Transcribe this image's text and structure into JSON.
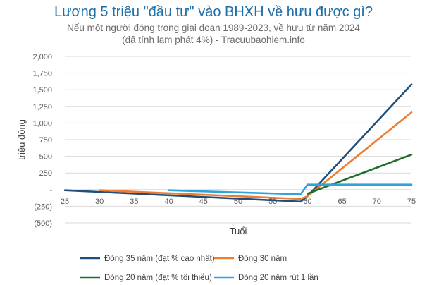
{
  "chart_data": {
    "type": "line",
    "title": "Lương 5 triệu \"đầu tư\" vào BHXH về hưu được gì?",
    "subtitle_lines": [
      "Nếu một người đóng trong giai đoạn 1989-2023, về hưu từ năm 2024",
      "(đã tính lạm phát 4%) - Tracuubaohiem.info"
    ],
    "xlabel": "Tuổi",
    "ylabel": "triệu đồng",
    "xlim": [
      25,
      75
    ],
    "ylim": [
      -500,
      2000
    ],
    "x_ticks": [
      25,
      30,
      35,
      40,
      45,
      50,
      55,
      60,
      65,
      70,
      75
    ],
    "y_ticks": [
      {
        "value": 2000,
        "label": "2,000"
      },
      {
        "value": 1750,
        "label": "1,750"
      },
      {
        "value": 1500,
        "label": "1,500"
      },
      {
        "value": 1250,
        "label": "1,250"
      },
      {
        "value": 1000,
        "label": "1,000"
      },
      {
        "value": 750,
        "label": "750"
      },
      {
        "value": 500,
        "label": "500"
      },
      {
        "value": 250,
        "label": "250"
      },
      {
        "value": 0,
        "label": "-"
      },
      {
        "value": -250,
        "label": "(250)"
      },
      {
        "value": -500,
        "label": "(500)"
      }
    ],
    "grid": true,
    "legend_position": "bottom",
    "series": [
      {
        "name": "Đóng 35 năm (đạt % cao nhất)",
        "color": "#1e4e79",
        "points": [
          [
            25,
            -10
          ],
          [
            59,
            -180
          ],
          [
            60,
            -100
          ],
          [
            75,
            1580
          ]
        ]
      },
      {
        "name": "Đóng 30 năm",
        "color": "#ed7d31",
        "points": [
          [
            30,
            -10
          ],
          [
            59,
            -140
          ],
          [
            60,
            -100
          ],
          [
            75,
            1160
          ]
        ]
      },
      {
        "name": "Đóng 20 năm (đạt % tối thiểu)",
        "color": "#1f6e2b",
        "points": [
          [
            60,
            -60
          ],
          [
            75,
            525
          ]
        ]
      },
      {
        "name": "Đóng 20 năm rút 1 lần",
        "color": "#2ea3dc",
        "points": [
          [
            40,
            -10
          ],
          [
            59,
            -70
          ],
          [
            60,
            75
          ],
          [
            75,
            75
          ]
        ]
      }
    ]
  }
}
